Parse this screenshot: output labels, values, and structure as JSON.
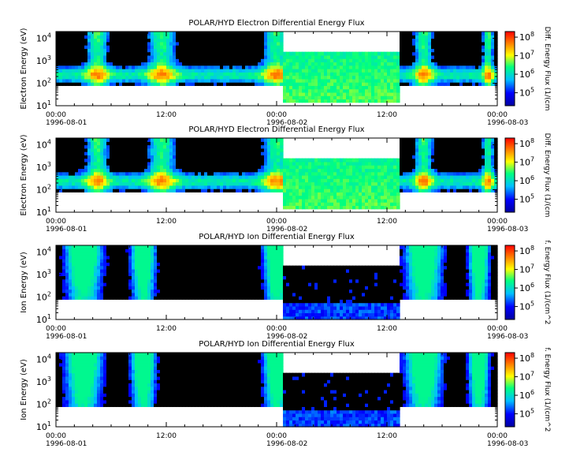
{
  "chart_data": [
    {
      "type": "heatmap",
      "title": "POLAR/HYD  Electron Differential Energy Flux",
      "ylabel": "Electron Energy (eV)",
      "zlabel": "Diff. Energy Flux (1/(cm",
      "yscale": "log",
      "ylim": [
        10,
        20000
      ],
      "zscale": "log",
      "zlim": [
        20000,
        200000000
      ],
      "x_ticks": [
        "00:00",
        "12:00",
        "00:00",
        "12:00",
        "00:00"
      ],
      "x_dates": [
        "1996-08-01",
        "",
        "1996-08-02",
        "",
        "1996-08-03"
      ],
      "x_range_hours": [
        0,
        48
      ],
      "y_ticks": [
        "10^1",
        "10^2",
        "10^3",
        "10^4"
      ],
      "z_ticks": [
        "10^5",
        "10^6",
        "10^7",
        "10^8"
      ],
      "colormap": [
        "#0000a0",
        "#0000ff",
        "#00c0ff",
        "#00ff80",
        "#ffff00",
        "#ff8000",
        "#ff0000"
      ]
    },
    {
      "type": "heatmap",
      "title": "POLAR/HYD  Electron Differential Energy Flux",
      "ylabel": "Electron Energy (eV)",
      "zlabel": "Diff. Energy Flux (1/(cm",
      "yscale": "log",
      "ylim": [
        10,
        20000
      ],
      "zscale": "log",
      "zlim": [
        20000,
        200000000
      ],
      "x_ticks": [
        "00:00",
        "12:00",
        "00:00",
        "12:00",
        "00:00"
      ],
      "x_dates": [
        "1996-08-01",
        "",
        "1996-08-02",
        "",
        "1996-08-03"
      ],
      "x_range_hours": [
        0,
        48
      ],
      "y_ticks": [
        "10^1",
        "10^2",
        "10^3",
        "10^4"
      ],
      "z_ticks": [
        "10^5",
        "10^6",
        "10^7",
        "10^8"
      ],
      "colormap": [
        "#0000a0",
        "#0000ff",
        "#00c0ff",
        "#00ff80",
        "#ffff00",
        "#ff8000",
        "#ff0000"
      ]
    },
    {
      "type": "heatmap",
      "title": "POLAR/HYD  Ion Differential Energy Flux",
      "ylabel": "Ion Energy (eV)",
      "zlabel": "f. Energy Flux (1/(cm^2",
      "yscale": "log",
      "ylim": [
        10,
        20000
      ],
      "zscale": "log",
      "zlim": [
        20000,
        200000000
      ],
      "x_ticks": [
        "00:00",
        "12:00",
        "00:00",
        "12:00",
        "00:00"
      ],
      "x_dates": [
        "1996-08-01",
        "",
        "1996-08-02",
        "",
        "1996-08-03"
      ],
      "x_range_hours": [
        0,
        48
      ],
      "y_ticks": [
        "10^1",
        "10^2",
        "10^3",
        "10^4"
      ],
      "z_ticks": [
        "10^5",
        "10^6",
        "10^7",
        "10^8"
      ],
      "colormap": [
        "#0000a0",
        "#0000ff",
        "#00c0ff",
        "#00ff80",
        "#ffff00",
        "#ff8000",
        "#ff0000"
      ]
    },
    {
      "type": "heatmap",
      "title": "POLAR/HYD  Ion Differential Energy Flux",
      "ylabel": "Ion Energy (eV)",
      "zlabel": "f. Energy Flux (1/(cm^2",
      "yscale": "log",
      "ylim": [
        10,
        20000
      ],
      "zscale": "log",
      "zlim": [
        20000,
        200000000
      ],
      "x_ticks": [
        "00:00",
        "12:00",
        "00:00",
        "12:00",
        "00:00"
      ],
      "x_dates": [
        "1996-08-01",
        "",
        "1996-08-02",
        "",
        "1996-08-03"
      ],
      "x_range_hours": [
        0,
        48
      ],
      "y_ticks": [
        "10^1",
        "10^2",
        "10^3",
        "10^4"
      ],
      "z_ticks": [
        "10^5",
        "10^6",
        "10^7",
        "10^8"
      ],
      "colormap": [
        "#0000a0",
        "#0000ff",
        "#00c0ff",
        "#00ff80",
        "#ffff00",
        "#ff8000",
        "#ff0000"
      ]
    }
  ]
}
